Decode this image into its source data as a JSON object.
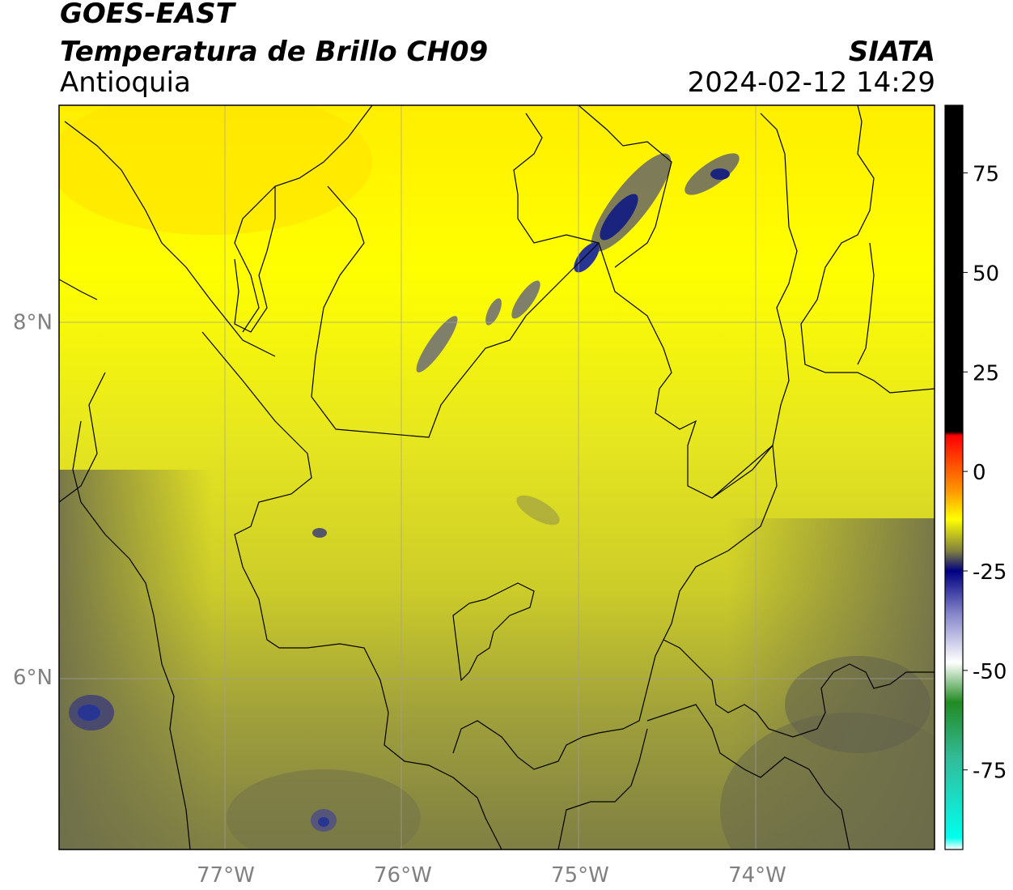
{
  "header": {
    "title_line1": "GOES-EAST",
    "title_line2": "Temperatura de Brillo CH09",
    "region": "Antioquia",
    "organization": "SIATA",
    "datetime": "2024-02-12 14:29"
  },
  "map": {
    "lat_ticks": [
      {
        "label": "8°N",
        "value": 8
      },
      {
        "label": "6°N",
        "value": 6
      }
    ],
    "lon_ticks": [
      {
        "label": "77°W",
        "value": -77
      },
      {
        "label": "76°W",
        "value": -76
      },
      {
        "label": "75°W",
        "value": -75
      },
      {
        "label": "74°W",
        "value": -74
      }
    ],
    "lon_range": [
      -77.94,
      -73.0
    ],
    "lat_range": [
      5.03,
      9.22
    ],
    "gridlines": true
  },
  "colorbar": {
    "ticks": [
      {
        "label": "75",
        "value": 75
      },
      {
        "label": "50",
        "value": 50
      },
      {
        "label": "25",
        "value": 25
      },
      {
        "label": "0",
        "value": 0
      },
      {
        "label": "-25",
        "value": -25
      },
      {
        "label": "-50",
        "value": -50
      },
      {
        "label": "-75",
        "value": -75
      }
    ],
    "range": [
      -95,
      92
    ],
    "stops": [
      {
        "value": 92,
        "color": "#000000"
      },
      {
        "value": 10,
        "color": "#000000"
      },
      {
        "value": 9,
        "color": "#ff0000"
      },
      {
        "value": -5,
        "color": "#ff9900"
      },
      {
        "value": -12,
        "color": "#ffff00"
      },
      {
        "value": -20,
        "color": "#808040"
      },
      {
        "value": -25,
        "color": "#000080"
      },
      {
        "value": -36,
        "color": "#8888cc"
      },
      {
        "value": -48,
        "color": "#ffffff"
      },
      {
        "value": -58,
        "color": "#228b22"
      },
      {
        "value": -72,
        "color": "#33bb99"
      },
      {
        "value": -92,
        "color": "#00ffee"
      },
      {
        "value": -95,
        "color": "#ffffff"
      }
    ]
  }
}
